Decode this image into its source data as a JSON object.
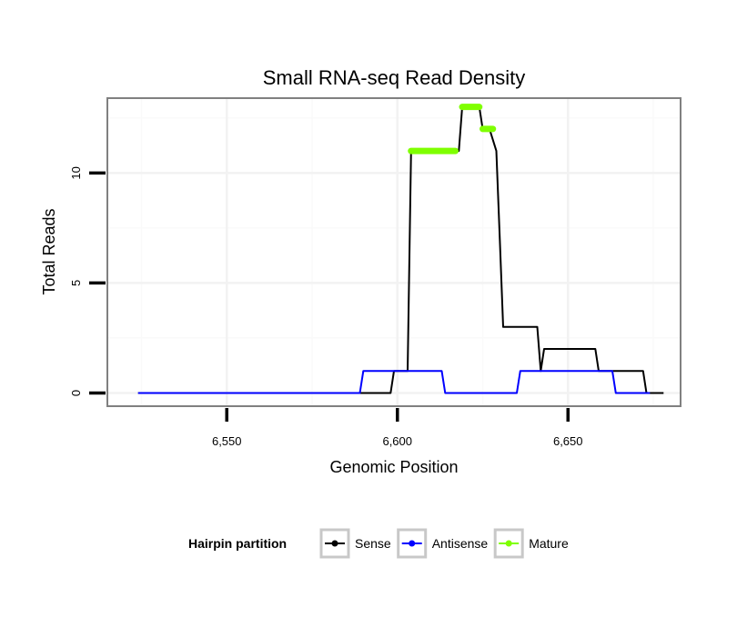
{
  "chart_data": {
    "type": "line",
    "title": "Small RNA-seq Read Density",
    "xlabel": "Genomic Position",
    "ylabel": "Total Reads",
    "xlim": [
      6515,
      6683
    ],
    "ylim": [
      -0.6,
      13.4
    ],
    "x_ticks": [
      6550,
      6600,
      6650
    ],
    "x_tick_labels": [
      "6,550",
      "6,600",
      "6,650"
    ],
    "y_ticks": [
      0,
      5,
      10
    ],
    "y_tick_labels": [
      "0",
      "5",
      "10"
    ],
    "grid": true,
    "legend": {
      "title": "Hairpin partition",
      "position": "bottom"
    },
    "series": [
      {
        "name": "Sense",
        "color": "#000000",
        "x": [
          6524,
          6598,
          6599,
          6603,
          6604,
          6618,
          6619,
          6624,
          6625,
          6627,
          6629,
          6630,
          6631,
          6641,
          6642,
          6643,
          6658,
          6659,
          6672,
          6673,
          6678
        ],
        "y": [
          0,
          0,
          1,
          1,
          11,
          11,
          13,
          13,
          12,
          12,
          11,
          7,
          3,
          3,
          1,
          2,
          2,
          1,
          1,
          0,
          0
        ]
      },
      {
        "name": "Antisense",
        "color": "#0000ff",
        "x": [
          6524,
          6589,
          6590,
          6613,
          6614,
          6635,
          6636,
          6663,
          6664,
          6674
        ],
        "y": [
          0,
          0,
          1,
          1,
          0,
          0,
          1,
          1,
          0,
          0
        ]
      },
      {
        "name": "Mature",
        "color": "#7fff00",
        "segments": [
          {
            "x": [
              6604,
              6617
            ],
            "y": 11
          },
          {
            "x": [
              6619,
              6624
            ],
            "y": 13
          },
          {
            "x": [
              6625,
              6628
            ],
            "y": 12
          }
        ]
      }
    ]
  }
}
